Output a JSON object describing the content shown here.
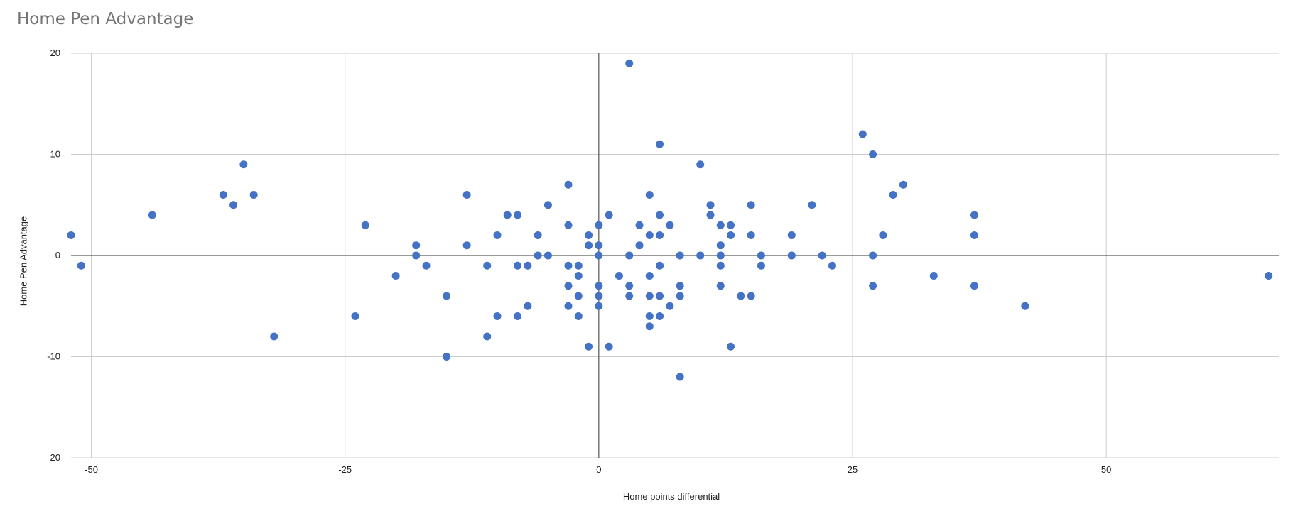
{
  "chart_data": {
    "type": "scatter",
    "title": "Home Pen Advantage",
    "xlabel": "Home points differential",
    "ylabel": "Home Pen Advantage",
    "xlim": [
      -52,
      67
    ],
    "ylim": [
      -20,
      20
    ],
    "x_ticks": [
      -50,
      -25,
      0,
      25,
      50
    ],
    "y_ticks": [
      20,
      10,
      0,
      -10,
      -20
    ],
    "grid": true,
    "legend": "none",
    "color": "#4472c4",
    "points": [
      [
        -52,
        2
      ],
      [
        -51,
        -1
      ],
      [
        -44,
        4
      ],
      [
        -37,
        6
      ],
      [
        -36,
        5
      ],
      [
        -35,
        9
      ],
      [
        -34,
        6
      ],
      [
        -32,
        -8
      ],
      [
        -24,
        -6
      ],
      [
        -23,
        3
      ],
      [
        -20,
        -2
      ],
      [
        -18,
        1
      ],
      [
        -18,
        0
      ],
      [
        -17,
        -1
      ],
      [
        -15,
        -4
      ],
      [
        -15,
        -10
      ],
      [
        -13,
        6
      ],
      [
        -13,
        1
      ],
      [
        -11,
        -1
      ],
      [
        -11,
        -8
      ],
      [
        -10,
        2
      ],
      [
        -10,
        -6
      ],
      [
        -9,
        4
      ],
      [
        -8,
        4
      ],
      [
        -8,
        -1
      ],
      [
        -8,
        -6
      ],
      [
        -7,
        -1
      ],
      [
        -7,
        -5
      ],
      [
        -6,
        2
      ],
      [
        -6,
        0
      ],
      [
        -5,
        5
      ],
      [
        -5,
        0
      ],
      [
        -3,
        7
      ],
      [
        -3,
        3
      ],
      [
        -3,
        -1
      ],
      [
        -3,
        -3
      ],
      [
        -3,
        -5
      ],
      [
        -2,
        -1
      ],
      [
        -2,
        -2
      ],
      [
        -2,
        -4
      ],
      [
        -2,
        -6
      ],
      [
        -1,
        2
      ],
      [
        -1,
        1
      ],
      [
        -1,
        -9
      ],
      [
        0,
        3
      ],
      [
        0,
        1
      ],
      [
        0,
        0
      ],
      [
        0,
        -3
      ],
      [
        0,
        -4
      ],
      [
        0,
        -5
      ],
      [
        1,
        4
      ],
      [
        1,
        -9
      ],
      [
        2,
        -2
      ],
      [
        3,
        19
      ],
      [
        3,
        0
      ],
      [
        3,
        -3
      ],
      [
        3,
        -4
      ],
      [
        4,
        3
      ],
      [
        4,
        1
      ],
      [
        5,
        6
      ],
      [
        5,
        2
      ],
      [
        5,
        -2
      ],
      [
        5,
        -4
      ],
      [
        5,
        -6
      ],
      [
        5,
        -7
      ],
      [
        6,
        11
      ],
      [
        6,
        4
      ],
      [
        6,
        2
      ],
      [
        6,
        -1
      ],
      [
        6,
        -4
      ],
      [
        6,
        -6
      ],
      [
        7,
        3
      ],
      [
        7,
        -5
      ],
      [
        8,
        0
      ],
      [
        8,
        -3
      ],
      [
        8,
        -4
      ],
      [
        8,
        -12
      ],
      [
        10,
        9
      ],
      [
        10,
        0
      ],
      [
        11,
        5
      ],
      [
        11,
        4
      ],
      [
        12,
        3
      ],
      [
        12,
        1
      ],
      [
        12,
        0
      ],
      [
        12,
        -1
      ],
      [
        12,
        -3
      ],
      [
        13,
        3
      ],
      [
        13,
        2
      ],
      [
        13,
        -9
      ],
      [
        14,
        -4
      ],
      [
        15,
        5
      ],
      [
        15,
        2
      ],
      [
        15,
        -4
      ],
      [
        16,
        0
      ],
      [
        16,
        -1
      ],
      [
        19,
        2
      ],
      [
        19,
        0
      ],
      [
        21,
        5
      ],
      [
        22,
        0
      ],
      [
        23,
        -1
      ],
      [
        26,
        12
      ],
      [
        27,
        10
      ],
      [
        27,
        0
      ],
      [
        27,
        -3
      ],
      [
        28,
        2
      ],
      [
        29,
        6
      ],
      [
        30,
        7
      ],
      [
        33,
        -2
      ],
      [
        37,
        4
      ],
      [
        37,
        2
      ],
      [
        37,
        -3
      ],
      [
        42,
        -5
      ],
      [
        66,
        -2
      ]
    ]
  }
}
